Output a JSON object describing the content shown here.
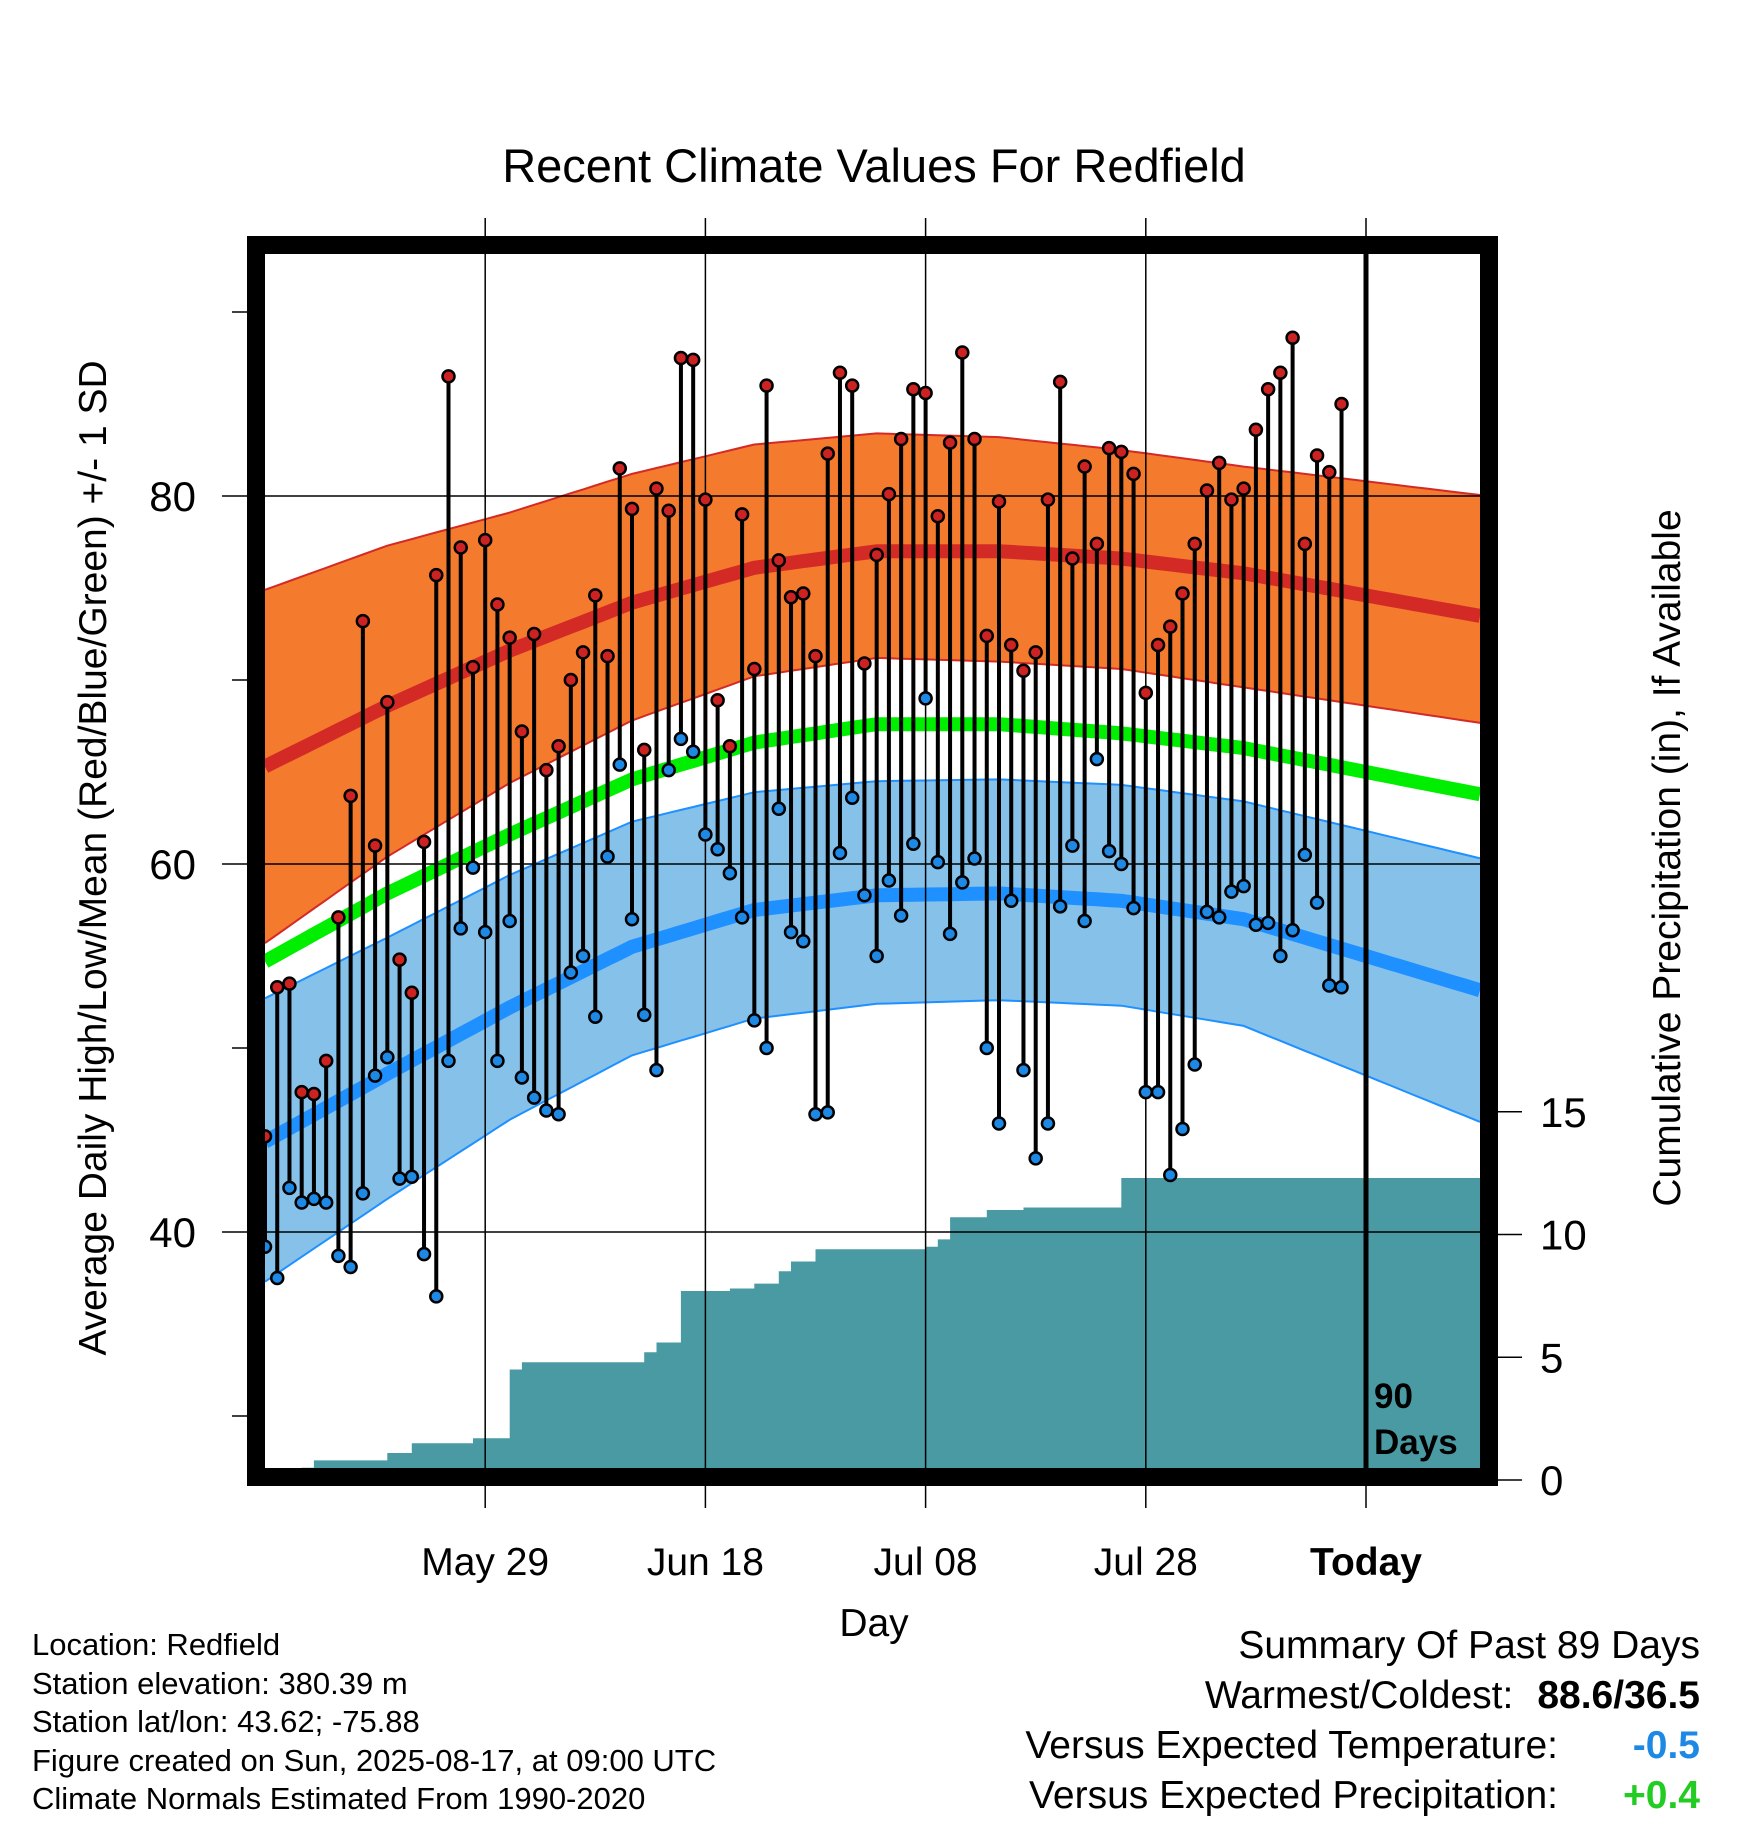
{
  "chart_data": {
    "type": "line",
    "title": "Recent Climate Values For Redfield",
    "xlabel": "Day",
    "ylabel_left": "Average Daily High/Low/Mean (Red/Blue/Green) +/- 1 SD",
    "ylabel_right": "Cumulative Precipitation (in), If Available",
    "x_ticks": [
      "May 29",
      "Jun 18",
      "Jul 08",
      "Jul 28",
      "Today"
    ],
    "y_left_ticks": [
      40,
      60,
      80
    ],
    "y_left_range": [
      27,
      94
    ],
    "y_right_ticks": [
      0,
      5,
      10,
      15
    ],
    "y_right_range": [
      0,
      50
    ],
    "x_range_days": [
      -90,
      0
    ],
    "today_marker": "90\nDays",
    "grid": true,
    "colors": {
      "high_band": "#f47b2e",
      "high_mean": "#d42a26",
      "mean_line": "#00ee00",
      "low_band": "#85c1e9",
      "low_mean": "#1e90ff",
      "high_marker": "#cc2222",
      "low_marker": "#1e88e5",
      "precip": "#4a9aa4"
    },
    "normals": {
      "days": [
        -90,
        -80,
        -70,
        -60,
        -50,
        -40,
        -30,
        -20,
        -10,
        0
      ],
      "high_mean": [
        65.3,
        68.6,
        71.6,
        74.2,
        76.1,
        77.0,
        77.0,
        76.6,
        75.8,
        74.6
      ],
      "high_upper": [
        74.9,
        77.3,
        79.1,
        81.2,
        82.8,
        83.4,
        83.2,
        82.5,
        81.6,
        80.8
      ],
      "high_lower": [
        55.7,
        60.4,
        64.4,
        67.8,
        70.2,
        71.2,
        71.0,
        70.6,
        69.6,
        68.6
      ],
      "mean": [
        54.7,
        58.4,
        61.6,
        64.6,
        66.6,
        67.6,
        67.6,
        67.1,
        66.3,
        65.0
      ],
      "low_mean": [
        44.9,
        48.6,
        52.2,
        55.5,
        57.5,
        58.3,
        58.4,
        58.0,
        57.0,
        55.0
      ],
      "low_upper": [
        52.7,
        56.0,
        59.4,
        62.3,
        63.9,
        64.5,
        64.6,
        64.3,
        63.4,
        61.8
      ],
      "low_lower": [
        37.3,
        41.8,
        46.1,
        49.6,
        51.6,
        52.4,
        52.6,
        52.3,
        51.2,
        48.5
      ]
    },
    "highs": [
      45.2,
      53.3,
      53.5,
      47.6,
      47.5,
      49.3,
      57.1,
      63.7,
      73.2,
      61.0,
      68.8,
      54.8,
      53.0,
      61.2,
      75.7,
      86.5,
      77.2,
      70.7,
      77.6,
      74.1,
      72.3,
      67.2,
      72.5,
      65.1,
      66.4,
      70.0,
      71.5,
      74.6,
      71.3,
      81.5,
      79.3,
      66.2,
      80.4,
      79.2,
      87.5,
      87.4,
      79.8,
      68.9,
      66.4,
      79.0,
      70.6,
      86.0,
      76.5,
      74.5,
      74.7,
      71.3,
      82.3,
      86.7,
      86.0,
      70.9,
      76.8,
      80.1,
      83.1,
      85.8,
      85.6,
      78.9,
      82.9,
      87.8,
      83.1,
      72.4,
      79.7,
      71.9,
      70.5,
      71.5,
      79.8,
      86.2,
      76.6,
      81.6,
      77.4,
      82.6,
      82.4,
      81.2,
      69.3,
      71.9,
      72.9,
      74.7,
      77.4,
      80.3,
      81.8,
      79.8,
      80.4,
      83.6,
      85.8,
      86.7,
      88.6,
      77.4,
      82.2,
      81.3,
      85.0
    ],
    "lows": [
      39.2,
      37.5,
      42.4,
      41.6,
      41.8,
      41.6,
      38.7,
      38.1,
      42.1,
      48.5,
      49.5,
      42.9,
      43.0,
      38.8,
      36.5,
      49.3,
      56.5,
      59.8,
      56.3,
      49.3,
      56.9,
      48.4,
      47.3,
      46.6,
      46.4,
      54.1,
      55.0,
      51.7,
      60.4,
      65.4,
      57.0,
      51.8,
      48.8,
      65.1,
      66.8,
      66.1,
      61.6,
      60.8,
      59.5,
      57.1,
      51.5,
      50.0,
      63.0,
      56.3,
      55.8,
      46.4,
      46.5,
      60.6,
      63.6,
      58.3,
      55.0,
      59.1,
      57.2,
      61.1,
      69.0,
      60.1,
      56.2,
      59.0,
      60.3,
      50.0,
      45.9,
      58.0,
      48.8,
      44.0,
      45.9,
      57.7,
      61.0,
      56.9,
      65.7,
      60.7,
      60.0,
      57.6,
      47.6,
      47.6,
      43.1,
      45.6,
      49.1,
      57.4,
      57.1,
      58.5,
      58.8,
      56.7,
      56.8,
      55.0,
      56.4,
      60.5,
      57.9,
      53.4,
      53.3
    ],
    "precip_cumulative": [
      0,
      0,
      0,
      0.5,
      0.8,
      0.8,
      0.8,
      0.8,
      0.8,
      0.8,
      1.1,
      1.1,
      1.5,
      1.5,
      1.5,
      1.5,
      1.5,
      1.7,
      1.7,
      1.7,
      4.5,
      4.8,
      4.8,
      4.8,
      4.8,
      4.8,
      4.8,
      4.8,
      4.8,
      4.8,
      4.8,
      5.2,
      5.6,
      5.6,
      7.7,
      7.7,
      7.7,
      7.7,
      7.8,
      7.8,
      8.0,
      8.0,
      8.5,
      8.9,
      8.9,
      9.4,
      9.4,
      9.4,
      9.4,
      9.4,
      9.4,
      9.4,
      9.4,
      9.4,
      9.5,
      9.8,
      10.7,
      10.7,
      10.7,
      11.0,
      11.0,
      11.0,
      11.1,
      11.1,
      11.1,
      11.1,
      11.1,
      11.1,
      11.1,
      11.1,
      12.3,
      12.3,
      12.3,
      12.3,
      12.3,
      12.3,
      12.3,
      12.3,
      12.3,
      12.3,
      12.3,
      12.3,
      12.3,
      12.3,
      12.3,
      12.3,
      12.3,
      12.3,
      12.3
    ]
  },
  "info": {
    "location": "Location: Redfield",
    "elevation": "Station elevation: 380.39 m",
    "latlon": "Station lat/lon: 43.62; -75.88",
    "created": "Figure created on Sun, 2025-08-17, at 09:00 UTC",
    "normals": "Climate Normals Estimated From 1990-2020"
  },
  "summary": {
    "title": "Summary Of Past 89 Days",
    "warm_label": "Warmest/Coldest:",
    "warm_value": "88.6/36.5",
    "temp_label": "Versus Expected Temperature:",
    "temp_value": "-0.5",
    "temp_color": "#1e88e5",
    "precip_label": "Versus Expected Precipitation:",
    "precip_value": "+0.4",
    "precip_color": "#22cc22"
  }
}
